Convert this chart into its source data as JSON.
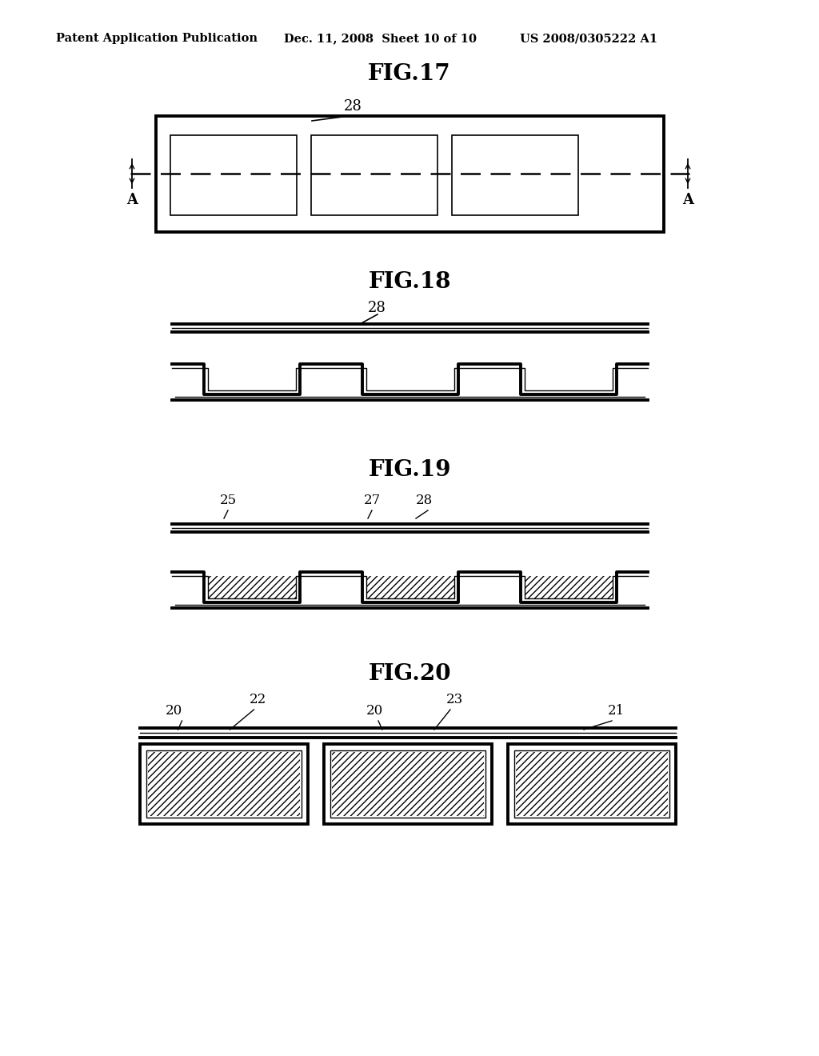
{
  "bg_color": "#ffffff",
  "header_left": "Patent Application Publication",
  "header_mid": "Dec. 11, 2008  Sheet 10 of 10",
  "header_right": "US 2008/0305222 A1",
  "fig17_title": "FIG.17",
  "fig18_title": "FIG.18",
  "fig19_title": "FIG.19",
  "fig20_title": "FIG.20",
  "line_color": "#000000",
  "lw_thick": 2.8,
  "lw_med": 1.8,
  "lw_thin": 1.0
}
